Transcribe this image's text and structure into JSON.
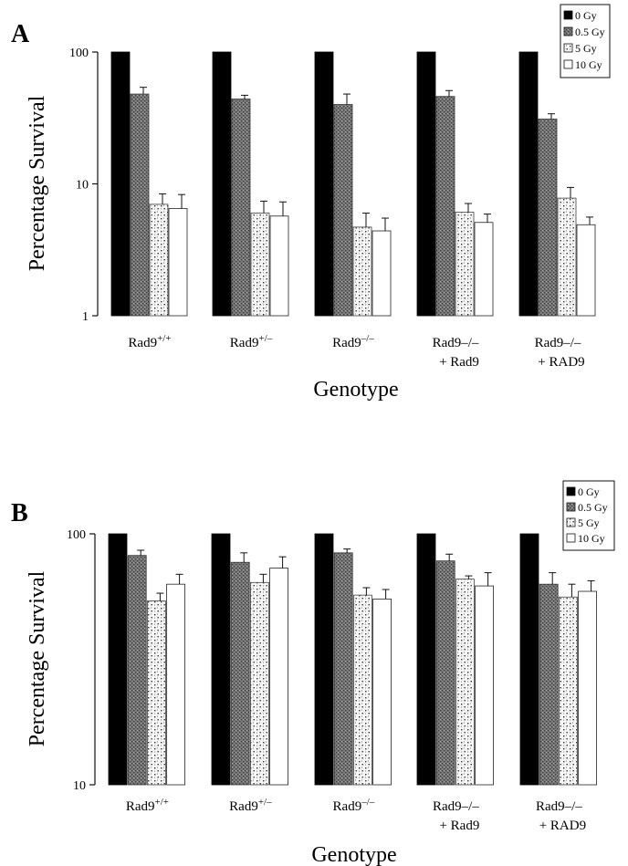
{
  "figure": {
    "panel_labels": [
      "A",
      "B"
    ],
    "legend": [
      "0 Gy",
      "0.5 Gy",
      "5 Gy",
      "10 Gy"
    ],
    "category_names": [
      {
        "main": "Rad9",
        "sup": "+/+",
        "second": ""
      },
      {
        "main": "Rad9",
        "sup": "+/–",
        "second": ""
      },
      {
        "main": "Rad9",
        "sup": "–/–",
        "second": ""
      },
      {
        "main": "Rad9–/–",
        "sup": "",
        "second": "+ Rad9"
      },
      {
        "main": "Rad9–/–",
        "sup": "",
        "second": "+ RAD9"
      }
    ]
  },
  "colors": {
    "0 Gy": "#000000",
    "0.5 Gy": "#777777",
    "5 Gy": "#f2f2f2",
    "10 Gy": "#ffffff"
  },
  "chart_data": [
    {
      "type": "bar",
      "panel": "A",
      "ylabel": "Percentage Survival",
      "xlabel": "Genotype",
      "yscale": "log",
      "ylim": [
        1,
        100
      ],
      "yticks": [
        1,
        10,
        100
      ],
      "ytick_labels": [
        "1",
        "10",
        "100"
      ],
      "categories": [
        "Rad9+/+",
        "Rad9+/–",
        "Rad9–/–",
        "Rad9–/– + Rad9",
        "Rad9–/– + RAD9"
      ],
      "series": [
        {
          "name": "0 Gy",
          "values": [
            100,
            100,
            100,
            100,
            100
          ],
          "errors": [
            0,
            0,
            0,
            0,
            0
          ]
        },
        {
          "name": "0.5 Gy",
          "values": [
            48,
            44,
            40,
            46,
            31
          ],
          "errors": [
            6,
            3,
            8,
            5,
            3
          ]
        },
        {
          "name": "5 Gy",
          "values": [
            7,
            6,
            4.7,
            6.1,
            7.8
          ],
          "errors": [
            1.4,
            1.4,
            1.3,
            1.0,
            1.6
          ]
        },
        {
          "name": "10 Gy",
          "values": [
            6.5,
            5.7,
            4.4,
            5.1,
            4.9
          ],
          "errors": [
            1.8,
            1.6,
            1.1,
            0.8,
            0.7
          ]
        }
      ],
      "legend_position": "top-right"
    },
    {
      "type": "bar",
      "panel": "B",
      "ylabel": "Percentage Survival",
      "xlabel": "Genotype",
      "yscale": "log",
      "ylim": [
        10,
        100
      ],
      "yticks": [
        10,
        100
      ],
      "ytick_labels": [
        "10",
        "100"
      ],
      "categories": [
        "Rad9+/+",
        "Rad9+/–",
        "Rad9–/–",
        "Rad9–/– + Rad9",
        "Rad9–/– + RAD9"
      ],
      "series": [
        {
          "name": "0 Gy",
          "values": [
            100,
            100,
            100,
            100,
            100
          ],
          "errors": [
            0,
            0,
            0,
            0,
            0
          ]
        },
        {
          "name": "0.5 Gy",
          "values": [
            82,
            77,
            84,
            78,
            63
          ],
          "errors": [
            4,
            7,
            3,
            5,
            7
          ]
        },
        {
          "name": "5 Gy",
          "values": [
            54,
            64,
            57,
            66,
            56
          ],
          "errors": [
            4,
            5,
            4,
            2,
            7
          ]
        },
        {
          "name": "10 Gy",
          "values": [
            63,
            73,
            55,
            62,
            59
          ],
          "errors": [
            6,
            8,
            5,
            8,
            6
          ]
        }
      ],
      "legend_position": "top-right"
    }
  ]
}
